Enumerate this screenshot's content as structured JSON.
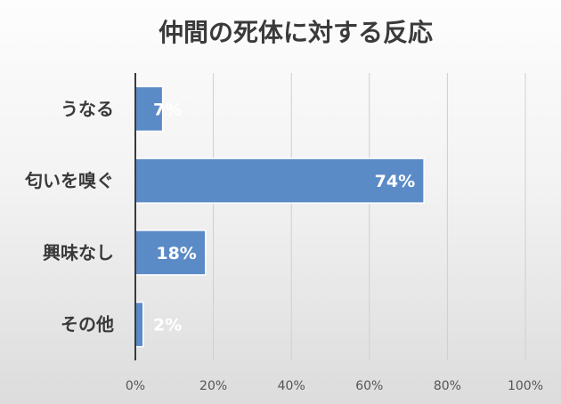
{
  "chart_data": {
    "type": "bar",
    "orientation": "horizontal",
    "title": "仲間の死体に対する反応",
    "categories": [
      "うなる",
      "匂いを嗅ぐ",
      "興味なし",
      "その他"
    ],
    "values": [
      7,
      74,
      18,
      2
    ],
    "data_labels": [
      "7%",
      "74%",
      "18%",
      "2%"
    ],
    "xlim": [
      0,
      100
    ],
    "xticks": [
      0,
      20,
      40,
      60,
      80,
      100
    ],
    "xtick_labels": [
      "0%",
      "20%",
      "40%",
      "60%",
      "80%",
      "100%"
    ],
    "grid": true,
    "bar_color": "#5b8bc6"
  }
}
